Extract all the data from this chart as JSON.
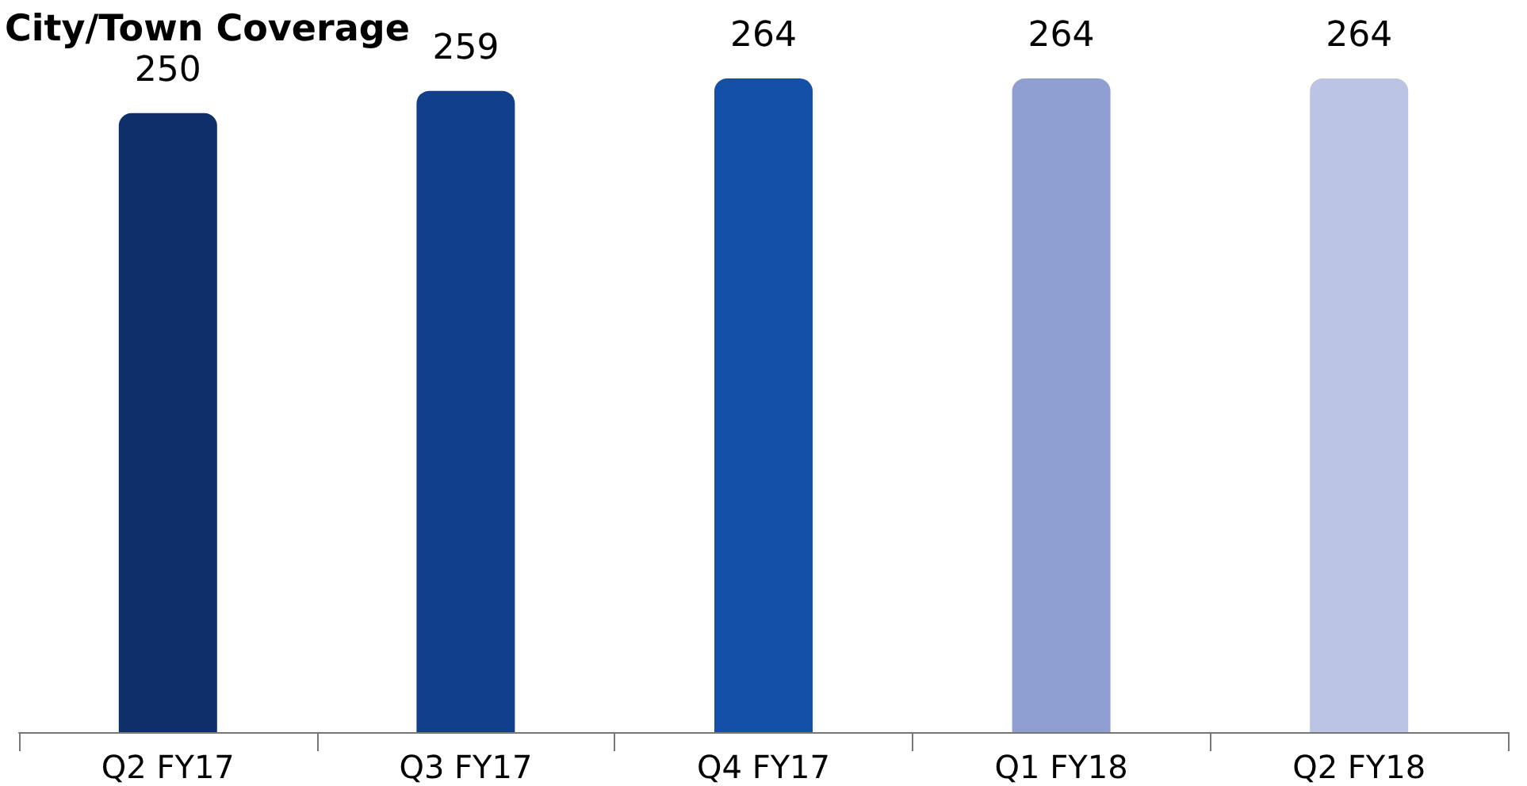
{
  "chart_data": {
    "type": "bar",
    "title": "City/Town Coverage",
    "categories": [
      "Q2 FY17",
      "Q3 FY17",
      "Q4 FY17",
      "Q1 FY18",
      "Q2 FY18"
    ],
    "values": [
      250,
      259,
      264,
      264,
      264
    ],
    "colors": [
      "#0f2f6b",
      "#123f8c",
      "#1550a8",
      "#8f9fd2",
      "#bcc4e3"
    ],
    "data_labels": true
  }
}
